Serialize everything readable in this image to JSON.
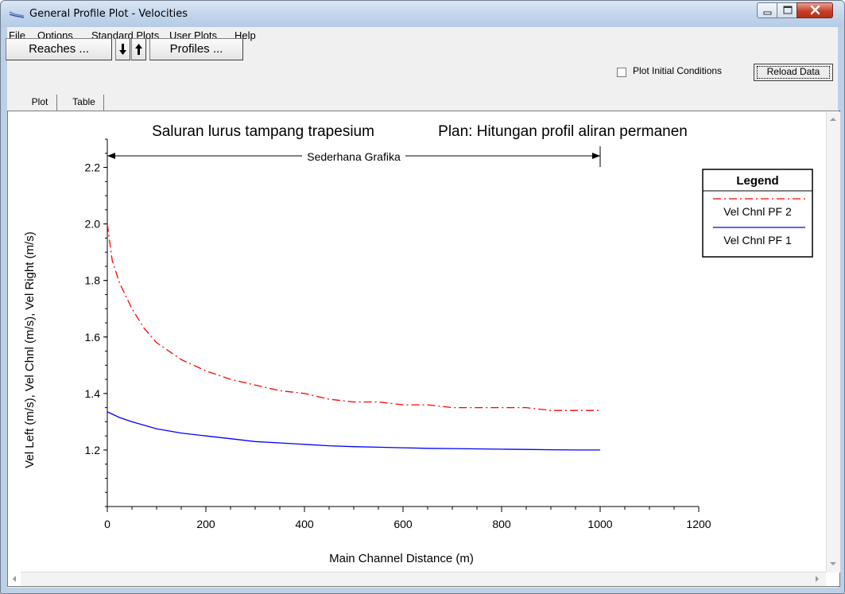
{
  "window": {
    "title": "General Profile Plot - Velocities"
  },
  "menu": [
    "File",
    "Options",
    "Standard Plots",
    "User Plots",
    "Help"
  ],
  "toolbar": {
    "reaches_label": "Reaches ...",
    "profiles_label": "Profiles ...",
    "plot_initial_conditions_label": "Plot Initial Conditions",
    "plot_initial_conditions_checked": false,
    "reload_label": "Reload Data"
  },
  "tabs": [
    {
      "label": "Plot",
      "active": true
    },
    {
      "label": "Table",
      "active": false
    }
  ],
  "icons": {
    "app": "profile-plot-icon",
    "down_arrow": "arrow-down-icon",
    "up_arrow": "arrow-up-icon",
    "minimize": "minimize-icon",
    "maximize": "maximize-icon",
    "close": "close-icon"
  },
  "colors": {
    "pf2": "#ff0000",
    "pf1": "#0000ff"
  },
  "chart_data": {
    "type": "line",
    "title": "Saluran lurus tampang trapesium",
    "plan_label": "Plan: Hitungan profil aliran permanen",
    "reach_label": "Sederhana Grafika",
    "reach_range": [
      0,
      1000
    ],
    "xlabel": "Main Channel Distance (m)",
    "ylabel": "Vel Left (m/s), Vel Chnl (m/s), Vel Right (m/s)",
    "xlim": [
      0,
      1200
    ],
    "ylim": [
      1.0,
      2.3
    ],
    "x_ticks": [
      0,
      200,
      400,
      600,
      800,
      1000,
      1200
    ],
    "y_ticks": [
      1.2,
      1.4,
      1.6,
      1.8,
      2.0,
      2.2
    ],
    "legend": {
      "title": "Legend",
      "placement": "top-right"
    },
    "series": [
      {
        "name": "Vel Chnl PF 2",
        "style": "dash-dot",
        "color": "#ff0000",
        "x": [
          0,
          10,
          25,
          50,
          75,
          100,
          150,
          200,
          250,
          300,
          350,
          400,
          450,
          500,
          550,
          600,
          650,
          700,
          750,
          800,
          850,
          900,
          950,
          1000
        ],
        "y": [
          2.0,
          1.87,
          1.79,
          1.7,
          1.63,
          1.58,
          1.52,
          1.48,
          1.45,
          1.43,
          1.41,
          1.4,
          1.38,
          1.37,
          1.37,
          1.36,
          1.36,
          1.35,
          1.35,
          1.35,
          1.35,
          1.34,
          1.34,
          1.34
        ]
      },
      {
        "name": "Vel Chnl PF 1",
        "style": "solid",
        "color": "#0000ff",
        "x": [
          0,
          25,
          50,
          100,
          150,
          200,
          250,
          300,
          350,
          400,
          450,
          500,
          550,
          600,
          650,
          700,
          750,
          800,
          850,
          900,
          950,
          1000
        ],
        "y": [
          1.335,
          1.315,
          1.3,
          1.275,
          1.26,
          1.25,
          1.24,
          1.23,
          1.225,
          1.22,
          1.215,
          1.212,
          1.21,
          1.208,
          1.206,
          1.205,
          1.204,
          1.203,
          1.202,
          1.201,
          1.2,
          1.2
        ]
      }
    ]
  }
}
